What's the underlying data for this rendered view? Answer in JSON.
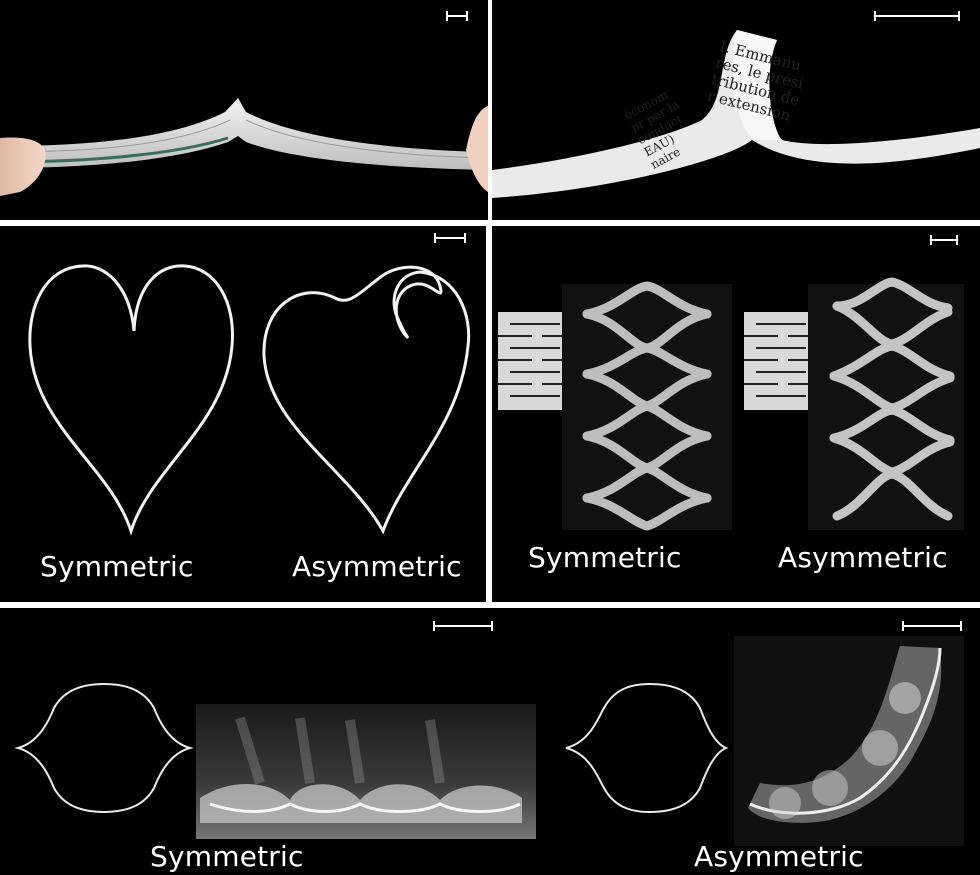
{
  "panel_book": {
    "scale_bar": "scale-bar"
  },
  "panel_paper_strip": {
    "scale_bar": "scale-bar",
    "printed_lines": [
      "I. Emmanu",
      "res, le prési",
      "tribution de",
      "r extension",
      "économ",
      "pr par la",
      "conduct",
      "EAU)",
      "naire"
    ]
  },
  "panel_hearts": {
    "captions": {
      "left": "Symmetric",
      "right": "Asymmetric"
    }
  },
  "panel_kirigami": {
    "captions": {
      "left": "Symmetric",
      "right": "Asymmetric"
    }
  },
  "panel_bottom": {
    "captions": {
      "left": "Symmetric",
      "right": "Asymmetric"
    }
  }
}
